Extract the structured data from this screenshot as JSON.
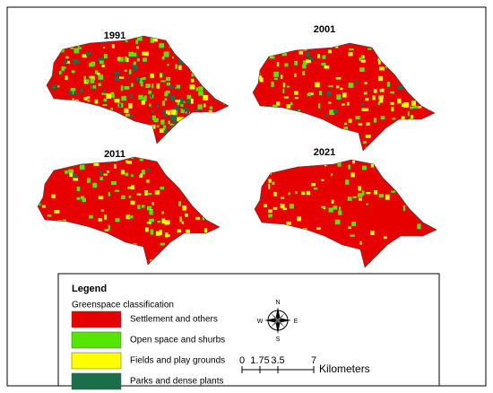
{
  "maps": [
    {
      "label": "1991"
    },
    {
      "label": "2001"
    },
    {
      "label": "2011"
    },
    {
      "label": "2021"
    }
  ],
  "legend": {
    "title": "Legend",
    "subtitle": "Greenspace classification",
    "classes": [
      {
        "label": "Settlement and others",
        "color": "#e60000"
      },
      {
        "label": "Open space and shurbs",
        "color": "#55e600"
      },
      {
        "label": "Fields and play grounds",
        "color": "#ffff00"
      },
      {
        "label": "Parks and dense plants",
        "color": "#1a6e4a"
      }
    ]
  },
  "compass": {
    "n": "N",
    "s": "S",
    "e": "E",
    "w": "W"
  },
  "scale_bar": {
    "ticks": [
      0,
      1.75,
      3.5,
      7
    ],
    "unit": "Kilometers"
  }
}
